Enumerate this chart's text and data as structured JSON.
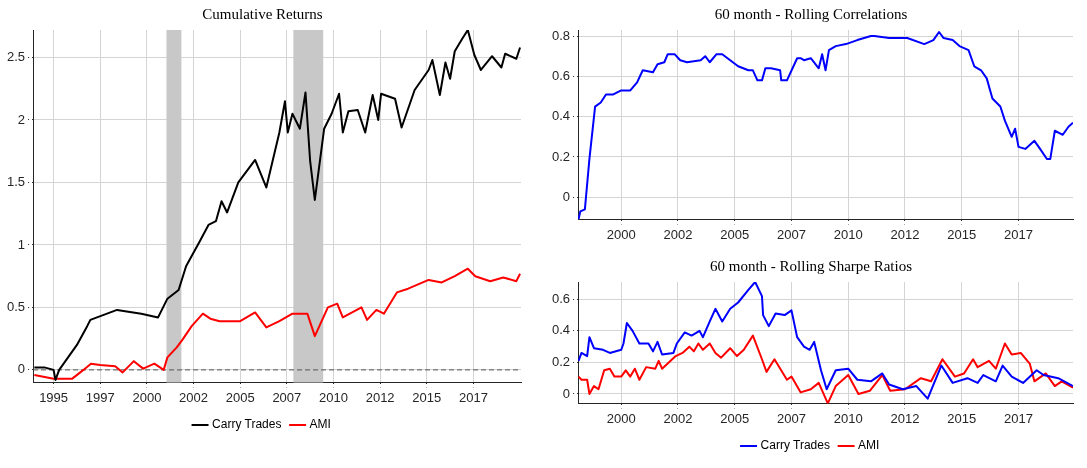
{
  "chart_data": [
    {
      "type": "line",
      "title": "Cumulative Returns",
      "xlim": [
        1993.9,
        2020.05
      ],
      "ylim": [
        -0.1,
        2.72
      ],
      "xticks": [
        1995,
        {
          "value": 1997.5,
          "label": "1997"
        },
        2000,
        {
          "value": 2002.5,
          "label": "2002"
        },
        2005,
        {
          "value": 2007.5,
          "label": "2007"
        },
        2010,
        {
          "value": 2012.5,
          "label": "2012"
        },
        2015,
        {
          "value": 2017.5,
          "label": "2017"
        }
      ],
      "yticks": [
        0,
        0.5,
        1,
        1.5,
        2,
        2.5
      ],
      "grid": true,
      "legend": "bottom",
      "bands": [
        {
          "axis": "x",
          "from": 2001.05,
          "to": 2001.85,
          "color": "#c8c8c8"
        },
        {
          "axis": "x",
          "from": 2007.85,
          "to": 2009.45,
          "color": "#c8c8c8"
        }
      ],
      "ref_lines": [
        {
          "axis": "y",
          "value": 0,
          "color": "#555555",
          "line_style": "dashed"
        }
      ],
      "series": [
        {
          "name": "Carry Trades",
          "color": "#000000",
          "x": [
            1993.97,
            1994.5,
            1995.0,
            1995.1,
            1995.3,
            1996.25,
            1996.8,
            1996.97,
            1998.4,
            1999.7,
            2000.6,
            2001.1,
            2001.7,
            2002.1,
            2002.8,
            2003.3,
            2003.7,
            2004.0,
            2004.3,
            2004.9,
            2005.8,
            2006.4,
            2007.1,
            2007.4,
            2007.55,
            2007.8,
            2008.2,
            2008.5,
            2008.75,
            2009.0,
            2009.5,
            2009.9,
            2010.3,
            2010.5,
            2010.8,
            2011.3,
            2011.7,
            2012.1,
            2012.4,
            2012.55,
            2013.3,
            2013.65,
            2014.35,
            2015.1,
            2015.3,
            2015.7,
            2016.0,
            2016.25,
            2016.5,
            2016.9,
            2017.2,
            2017.55,
            2017.9,
            2018.5,
            2019.0,
            2019.2,
            2019.8,
            2020.0
          ],
          "values": [
            0.02,
            0.02,
            0.0,
            -0.08,
            0.0,
            0.2,
            0.35,
            0.4,
            0.48,
            0.45,
            0.42,
            0.57,
            0.64,
            0.83,
            1.02,
            1.16,
            1.19,
            1.35,
            1.26,
            1.5,
            1.68,
            1.46,
            1.9,
            2.15,
            1.9,
            2.05,
            1.93,
            2.22,
            1.67,
            1.36,
            1.93,
            2.05,
            2.21,
            1.9,
            2.07,
            2.08,
            1.9,
            2.2,
            2.0,
            2.21,
            2.17,
            1.94,
            2.24,
            2.4,
            2.48,
            2.2,
            2.46,
            2.33,
            2.55,
            2.65,
            2.72,
            2.52,
            2.4,
            2.51,
            2.42,
            2.53,
            2.49,
            2.58
          ]
        },
        {
          "name": "AMI",
          "color": "#ff0000",
          "x": [
            1993.97,
            1995.0,
            1996.0,
            1996.6,
            1997.0,
            1997.5,
            1998.3,
            1998.7,
            1999.3,
            1999.8,
            2000.4,
            2000.9,
            2001.1,
            2001.6,
            2001.9,
            2002.4,
            2003.0,
            2003.4,
            2003.9,
            2005.0,
            2005.8,
            2006.4,
            2007.1,
            2007.8,
            2008.6,
            2009.0,
            2009.7,
            2010.2,
            2010.5,
            2011.5,
            2011.8,
            2012.3,
            2012.7,
            2013.4,
            2014.0,
            2015.1,
            2015.8,
            2016.5,
            2017.2,
            2017.6,
            2018.4,
            2019.1,
            2019.8,
            2020.0
          ],
          "values": [
            -0.04,
            -0.07,
            -0.07,
            0.0,
            0.05,
            0.04,
            0.03,
            -0.02,
            0.07,
            0.01,
            0.05,
            0.0,
            0.1,
            0.18,
            0.24,
            0.35,
            0.45,
            0.41,
            0.39,
            0.39,
            0.46,
            0.34,
            0.39,
            0.45,
            0.45,
            0.27,
            0.5,
            0.53,
            0.42,
            0.5,
            0.4,
            0.48,
            0.45,
            0.62,
            0.65,
            0.72,
            0.7,
            0.75,
            0.81,
            0.75,
            0.71,
            0.74,
            0.71,
            0.77
          ]
        }
      ]
    },
    {
      "type": "line",
      "title": "60 month - Rolling Correlations",
      "xlim": [
        1998.1,
        2019.9
      ],
      "ylim": [
        -0.11,
        0.83
      ],
      "xticks": [
        2000,
        {
          "value": 2002.5,
          "label": "2002"
        },
        2005,
        {
          "value": 2007.5,
          "label": "2007"
        },
        2010,
        {
          "value": 2012.5,
          "label": "2012"
        },
        2015,
        {
          "value": 2017.5,
          "label": "2017"
        }
      ],
      "yticks": [
        0,
        0.2,
        0.4,
        0.6,
        0.8
      ],
      "grid": true,
      "series": [
        {
          "color": "#0000ff",
          "x": [
            1998.12,
            1998.2,
            1998.4,
            1998.6,
            1998.85,
            1999.1,
            1999.33,
            1999.65,
            2000.0,
            2000.4,
            2000.7,
            2000.95,
            2001.4,
            2001.6,
            2001.9,
            2002.05,
            2002.35,
            2002.6,
            2002.9,
            2003.5,
            2003.7,
            2003.9,
            2004.2,
            2004.45,
            2004.8,
            2005.15,
            2005.6,
            2005.8,
            2006.0,
            2006.2,
            2006.35,
            2006.6,
            2007.0,
            2007.05,
            2007.3,
            2007.75,
            2007.9,
            2008.05,
            2008.35,
            2008.7,
            2008.85,
            2009.0,
            2009.15,
            2009.45,
            2009.9,
            2010.4,
            2011.0,
            2011.15,
            2011.8,
            2012.6,
            2013.35,
            2013.75,
            2014.0,
            2014.2,
            2014.6,
            2014.9,
            2015.3,
            2015.55,
            2015.85,
            2016.1,
            2016.35,
            2016.7,
            2016.9,
            2017.2,
            2017.35,
            2017.5,
            2017.8,
            2018.2,
            2018.45,
            2018.75,
            2018.9,
            2019.1,
            2019.45,
            2019.7,
            2019.9
          ],
          "values": [
            -0.11,
            -0.07,
            -0.06,
            0.19,
            0.45,
            0.47,
            0.51,
            0.51,
            0.53,
            0.53,
            0.57,
            0.63,
            0.62,
            0.66,
            0.67,
            0.71,
            0.71,
            0.68,
            0.67,
            0.68,
            0.7,
            0.67,
            0.71,
            0.71,
            0.68,
            0.65,
            0.63,
            0.63,
            0.58,
            0.58,
            0.64,
            0.64,
            0.63,
            0.58,
            0.58,
            0.69,
            0.69,
            0.68,
            0.69,
            0.64,
            0.71,
            0.63,
            0.73,
            0.75,
            0.76,
            0.78,
            0.8,
            0.8,
            0.79,
            0.79,
            0.76,
            0.78,
            0.82,
            0.79,
            0.78,
            0.75,
            0.73,
            0.65,
            0.63,
            0.59,
            0.49,
            0.45,
            0.38,
            0.3,
            0.34,
            0.25,
            0.24,
            0.28,
            0.24,
            0.19,
            0.19,
            0.33,
            0.31,
            0.35,
            0.37
          ]
        }
      ]
    },
    {
      "type": "line",
      "title": "60 month - Rolling Sharpe Ratios",
      "xlim": [
        1998.1,
        2019.9
      ],
      "ylim": [
        -0.06,
        0.71
      ],
      "xticks": [
        2000,
        {
          "value": 2002.5,
          "label": "2002"
        },
        2005,
        {
          "value": 2007.5,
          "label": "2007"
        },
        2010,
        {
          "value": 2012.5,
          "label": "2012"
        },
        2015,
        {
          "value": 2017.5,
          "label": "2017"
        }
      ],
      "yticks": [
        0,
        0.2,
        0.4,
        0.6
      ],
      "grid": true,
      "legend": "bottom",
      "series": [
        {
          "name": "Carry Trades",
          "color": "#0000ff",
          "x": [
            1998.12,
            1998.25,
            1998.5,
            1998.6,
            1998.8,
            1999.2,
            1999.5,
            2000.0,
            2000.1,
            2000.25,
            2000.5,
            2000.8,
            2001.2,
            2001.4,
            2001.6,
            2001.8,
            2002.3,
            2002.45,
            2002.8,
            2003.1,
            2003.45,
            2003.6,
            2003.9,
            2004.15,
            2004.45,
            2004.8,
            2005.15,
            2005.6,
            2005.9,
            2006.2,
            2006.25,
            2006.5,
            2006.8,
            2007.2,
            2007.5,
            2007.75,
            2008.05,
            2008.3,
            2008.5,
            2008.8,
            2009.05,
            2009.45,
            2010.0,
            2010.4,
            2011.0,
            2011.5,
            2011.8,
            2012.4,
            2013.0,
            2013.5,
            2014.1,
            2014.6,
            2015.25,
            2015.7,
            2015.95,
            2016.5,
            2016.8,
            2017.2,
            2017.7,
            2018.3,
            2018.6,
            2019.25,
            2019.9
          ],
          "values": [
            0.21,
            0.26,
            0.24,
            0.36,
            0.29,
            0.28,
            0.26,
            0.28,
            0.32,
            0.45,
            0.4,
            0.32,
            0.32,
            0.27,
            0.33,
            0.25,
            0.26,
            0.32,
            0.39,
            0.37,
            0.4,
            0.36,
            0.46,
            0.54,
            0.46,
            0.54,
            0.58,
            0.66,
            0.71,
            0.62,
            0.5,
            0.43,
            0.51,
            0.5,
            0.53,
            0.36,
            0.3,
            0.28,
            0.33,
            0.15,
            0.03,
            0.15,
            0.16,
            0.09,
            0.08,
            0.13,
            0.06,
            0.03,
            0.05,
            -0.03,
            0.18,
            0.07,
            0.1,
            0.07,
            0.12,
            0.08,
            0.18,
            0.11,
            0.07,
            0.15,
            0.12,
            0.1,
            0.05
          ]
        },
        {
          "name": "AMI",
          "color": "#ff0000",
          "x": [
            1998.12,
            1998.25,
            1998.5,
            1998.6,
            1998.8,
            1999.0,
            1999.25,
            1999.5,
            1999.7,
            2000.0,
            2000.2,
            2000.4,
            2000.6,
            2000.8,
            2001.1,
            2001.5,
            2001.65,
            2001.8,
            2002.4,
            2002.7,
            2003.0,
            2003.2,
            2003.4,
            2003.6,
            2003.9,
            2004.15,
            2004.4,
            2004.8,
            2005.1,
            2005.4,
            2005.8,
            2006.2,
            2006.4,
            2006.75,
            2007.3,
            2007.5,
            2007.9,
            2008.35,
            2008.7,
            2009.1,
            2009.45,
            2010.0,
            2010.45,
            2010.95,
            2011.5,
            2011.85,
            2012.5,
            2013.2,
            2013.65,
            2014.15,
            2014.7,
            2015.1,
            2015.5,
            2015.7,
            2016.2,
            2016.5,
            2016.9,
            2017.2,
            2017.6,
            2018.0,
            2018.2,
            2018.7,
            2019.1,
            2019.4,
            2019.9
          ],
          "values": [
            0.11,
            0.09,
            0.09,
            0.0,
            0.05,
            0.03,
            0.15,
            0.16,
            0.11,
            0.11,
            0.15,
            0.11,
            0.16,
            0.09,
            0.17,
            0.16,
            0.21,
            0.16,
            0.24,
            0.26,
            0.3,
            0.27,
            0.32,
            0.28,
            0.32,
            0.26,
            0.23,
            0.29,
            0.24,
            0.28,
            0.37,
            0.22,
            0.14,
            0.22,
            0.09,
            0.11,
            0.01,
            0.03,
            0.07,
            -0.06,
            0.05,
            0.12,
            0.0,
            0.02,
            0.12,
            0.02,
            0.03,
            0.1,
            0.08,
            0.22,
            0.11,
            0.13,
            0.22,
            0.17,
            0.21,
            0.16,
            0.32,
            0.25,
            0.26,
            0.19,
            0.08,
            0.13,
            0.05,
            0.08,
            0.04
          ]
        }
      ]
    }
  ]
}
